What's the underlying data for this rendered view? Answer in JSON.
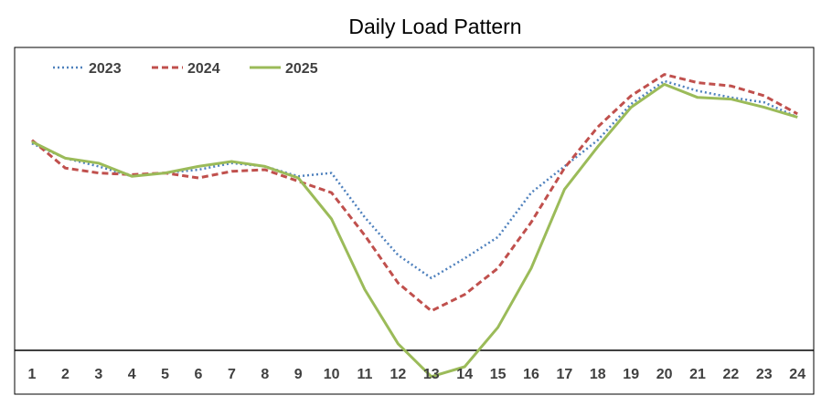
{
  "chart_data": {
    "type": "line",
    "title": "Daily Load Pattern",
    "xlabel": "",
    "ylabel": "",
    "x": [
      1,
      2,
      3,
      4,
      5,
      6,
      7,
      8,
      9,
      10,
      11,
      12,
      13,
      14,
      15,
      16,
      17,
      18,
      19,
      20,
      21,
      22,
      23,
      24
    ],
    "ylim": [
      0,
      100
    ],
    "legend_position": "top-left",
    "grid": false,
    "series": [
      {
        "name": "2023",
        "color": "#4f81bd",
        "style": "dotted",
        "values": [
          63,
          58.5,
          56,
          53,
          54,
          55,
          57,
          56,
          53,
          54,
          40.5,
          29,
          22,
          28,
          34.5,
          48,
          56,
          64,
          75,
          82,
          79,
          77,
          75.5,
          71
        ]
      },
      {
        "name": "2024",
        "color": "#c0504d",
        "style": "dashed",
        "values": [
          64,
          55.5,
          54,
          53.5,
          54,
          52.5,
          54.5,
          55,
          51.5,
          48,
          35,
          20.5,
          12,
          17,
          25,
          39,
          55.5,
          68,
          77.5,
          84,
          81.5,
          80.5,
          77.5,
          72
        ]
      },
      {
        "name": "2025",
        "color": "#9bbb59",
        "style": "solid",
        "values": [
          63.5,
          58.5,
          57,
          53,
          54,
          56,
          57.5,
          56,
          52.5,
          40,
          18.5,
          2,
          -8,
          -5,
          7,
          25,
          49,
          62,
          74,
          81,
          77,
          76.5,
          74,
          71
        ]
      }
    ]
  }
}
